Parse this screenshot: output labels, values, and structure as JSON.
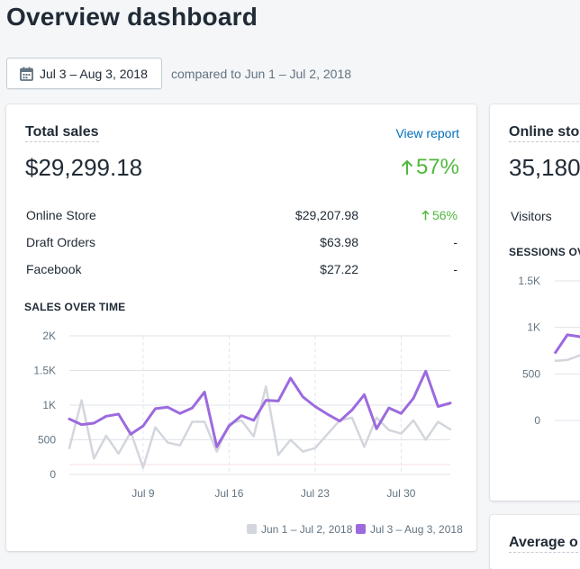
{
  "page": {
    "title": "Overview dashboard"
  },
  "date_range": {
    "label": "Jul 3 – Aug 3, 2018",
    "compare_text": "compared to Jun 1 – Jul 2, 2018"
  },
  "total_sales": {
    "title": "Total sales",
    "view_report": "View report",
    "value": "$29,299.18",
    "change": "57%",
    "rows": [
      {
        "name": "Online Store",
        "amount": "$29,207.98",
        "change": "56%"
      },
      {
        "name": "Draft Orders",
        "amount": "$63.98",
        "change": "-"
      },
      {
        "name": "Facebook",
        "amount": "$27.22",
        "change": "-"
      }
    ],
    "chart_label": "SALES OVER TIME"
  },
  "online_store": {
    "title": "Online sto",
    "value": "35,180",
    "visitors_label": "Visitors",
    "chart_label": "SESSIONS OV",
    "y_ticks": [
      "1.5K",
      "1K",
      "500",
      "0"
    ]
  },
  "average_card": {
    "title": "Average o"
  },
  "colors": {
    "current": "#9c6ade",
    "previous": "#d3d6dc",
    "positive": "#50b83c",
    "link": "#006fbb"
  },
  "chart_data": {
    "type": "line",
    "y_ticks": [
      "2K",
      "1.5K",
      "1K",
      "500",
      "0"
    ],
    "x_ticks": [
      "Jul 9",
      "Jul 16",
      "Jul 23",
      "Jul 30"
    ],
    "ylim": [
      0,
      2000
    ],
    "series": [
      {
        "name": "Jun 1 – Jul 2, 2018",
        "values": [
          380,
          1070,
          230,
          560,
          300,
          610,
          100,
          680,
          460,
          420,
          760,
          760,
          330,
          730,
          780,
          550,
          1270,
          280,
          500,
          330,
          380,
          580,
          780,
          820,
          400,
          820,
          640,
          590,
          780,
          500,
          760,
          650
        ]
      },
      {
        "name": "Jul 3 – Aug 3, 2018",
        "values": [
          800,
          720,
          740,
          840,
          870,
          580,
          700,
          950,
          970,
          880,
          960,
          1190,
          400,
          700,
          850,
          780,
          1070,
          1060,
          1390,
          1120,
          980,
          870,
          770,
          930,
          1150,
          660,
          960,
          880,
          1100,
          1490,
          980,
          1030
        ]
      }
    ]
  },
  "side_chart_data": {
    "type": "line",
    "ylim": [
      0,
      1500
    ],
    "series": [
      {
        "name": "previous",
        "values": [
          640,
          650,
          700,
          680
        ]
      },
      {
        "name": "current",
        "values": [
          720,
          920,
          900,
          870
        ]
      }
    ]
  }
}
